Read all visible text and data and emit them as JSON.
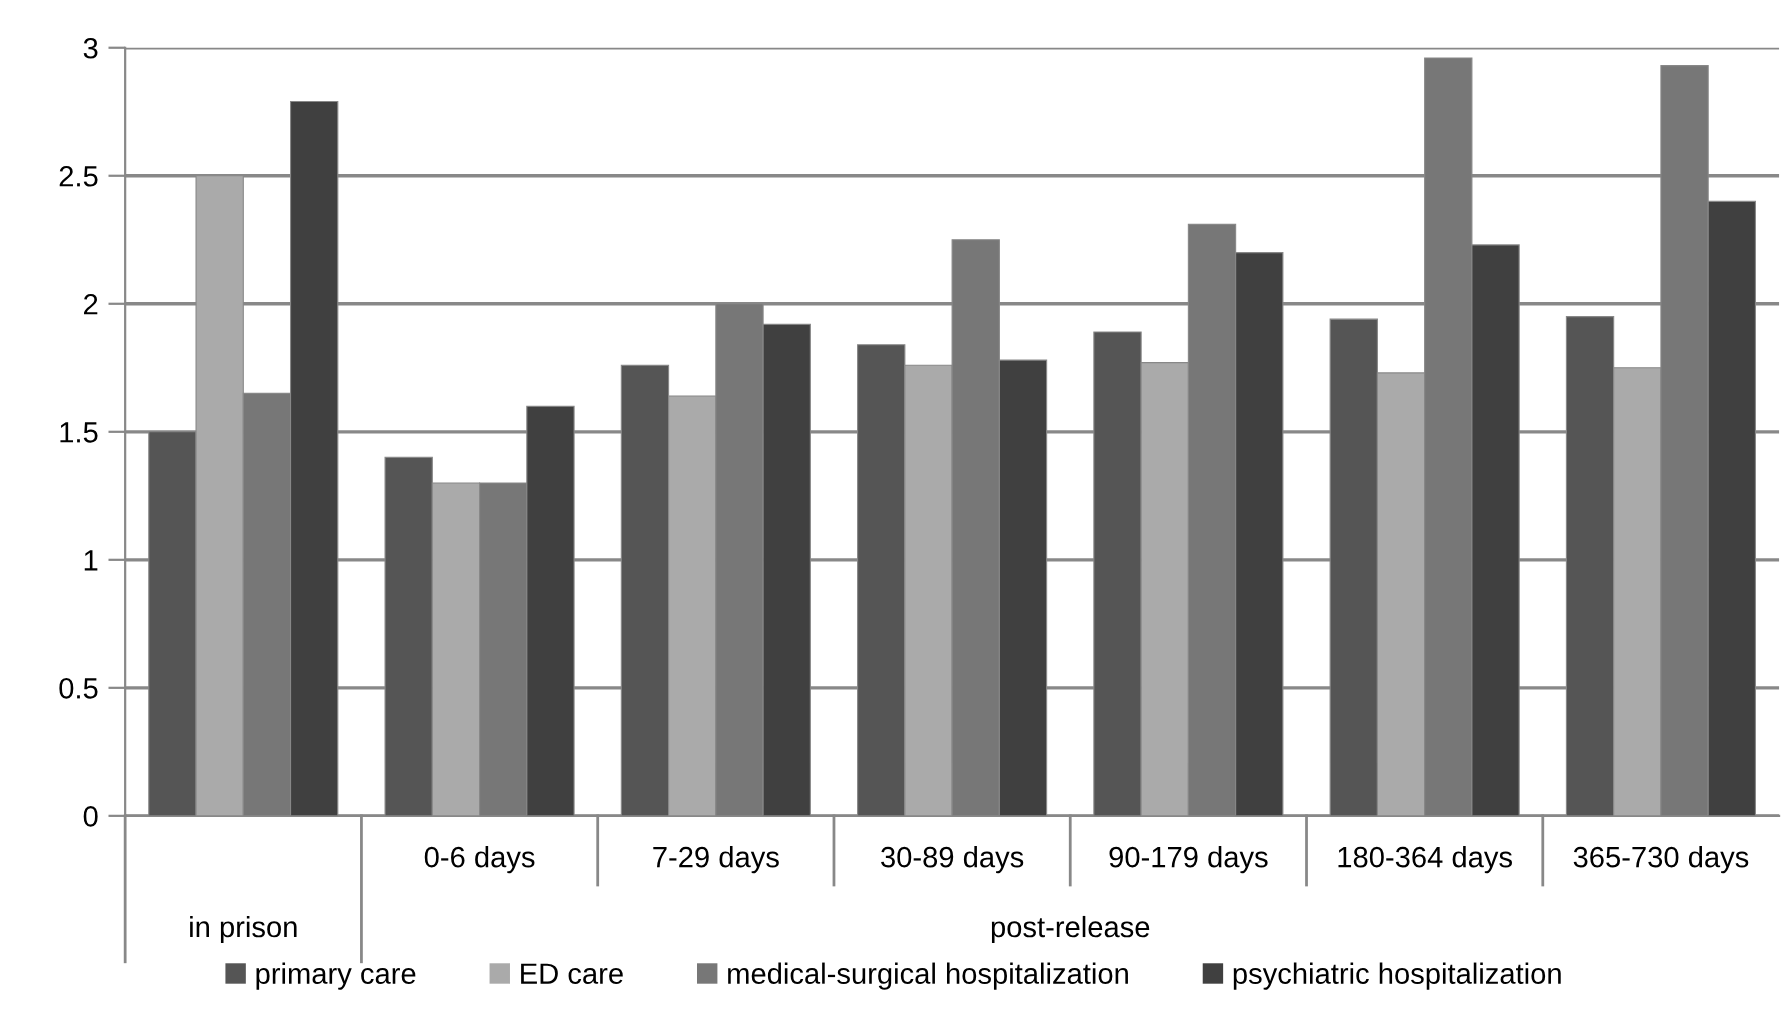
{
  "chart_data": {
    "type": "bar",
    "categories": [
      null,
      "0-6 days",
      "7-29 days",
      "30-89 days",
      "90-179 days",
      "180-364 days",
      "365-730 days"
    ],
    "series": [
      {
        "name": "primary care",
        "color": "#555555",
        "values": [
          1.5,
          1.4,
          1.76,
          1.84,
          1.89,
          1.94,
          1.95
        ]
      },
      {
        "name": "ED care",
        "color": "#aaaaaa",
        "values": [
          2.5,
          1.3,
          1.64,
          1.76,
          1.77,
          1.73,
          1.75
        ]
      },
      {
        "name": "medical-surgical hospitalization",
        "color": "#777777",
        "values": [
          1.65,
          1.3,
          2.0,
          2.25,
          2.31,
          2.96,
          2.93
        ]
      },
      {
        "name": "psychiatric hospitalization",
        "color": "#404040",
        "values": [
          2.79,
          1.6,
          1.92,
          1.78,
          2.2,
          2.23,
          2.4
        ]
      }
    ],
    "annotations": [
      "in prison",
      "post-release"
    ],
    "ylim": [
      0,
      3
    ],
    "yticks": [
      0,
      0.5,
      1,
      1.5,
      2,
      2.5,
      3
    ],
    "grid": "y",
    "legend": "bottom"
  }
}
